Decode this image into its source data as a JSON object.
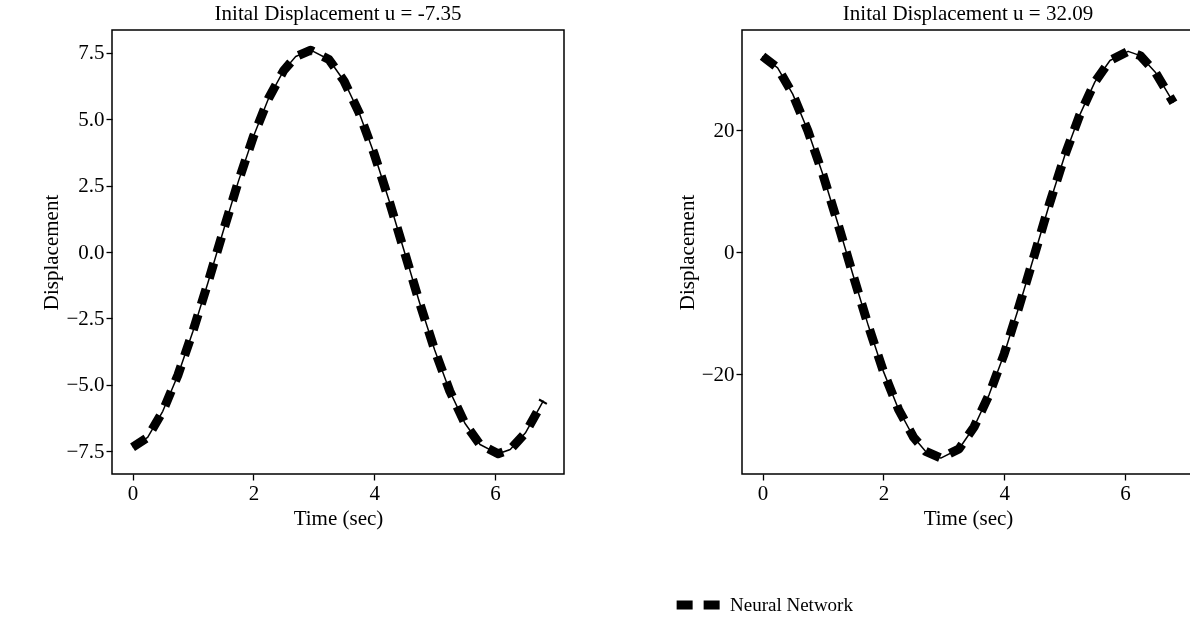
{
  "chart_data": [
    {
      "type": "line",
      "title": "Inital Displacement u = -7.35",
      "xlabel": "Time (sec)",
      "ylabel": "Displacement",
      "legend": "bottom",
      "x": [
        0,
        0.25,
        0.5,
        0.75,
        1,
        1.25,
        1.5,
        1.75,
        2,
        2.25,
        2.5,
        2.7,
        2.95,
        3.25,
        3.5,
        3.75,
        4,
        4.25,
        4.5,
        4.75,
        5,
        5.25,
        5.5,
        5.75,
        6.05,
        6.25,
        6.5,
        6.8
      ],
      "series": [
        {
          "color": "#000000",
          "line_style": "solid",
          "values": [
            -7.35,
            -6.98,
            -6.0,
            -4.64,
            -2.98,
            -1.14,
            0.78,
            2.65,
            4.35,
            5.78,
            6.83,
            7.36,
            7.6,
            7.25,
            6.44,
            5.24,
            3.69,
            1.9,
            0.0,
            -1.91,
            -3.69,
            -5.24,
            -6.45,
            -7.25,
            -7.6,
            -7.44,
            -6.82,
            -5.6
          ]
        },
        {
          "name": "Neural Network",
          "color": "#000000",
          "line_style": "dashed",
          "values": [
            -7.35,
            -6.98,
            -6.0,
            -4.64,
            -2.98,
            -1.14,
            0.78,
            2.65,
            4.35,
            5.78,
            6.83,
            7.36,
            7.6,
            7.25,
            6.44,
            5.24,
            3.69,
            1.9,
            0.0,
            -1.91,
            -3.69,
            -5.24,
            -6.45,
            -7.25,
            -7.6,
            -7.44,
            -6.82,
            -5.6
          ]
        }
      ],
      "xlim": [
        -0.34,
        7.14
      ],
      "xticks": [
        0,
        2,
        4,
        6
      ],
      "ylim": [
        -8.36,
        8.36
      ],
      "yticks": [
        {
          "value": -7.5,
          "label": "−7.5"
        },
        {
          "value": -5,
          "label": "−5.0"
        },
        {
          "value": -2.5,
          "label": "−2.5"
        },
        {
          "value": 0,
          "label": "0.0"
        },
        {
          "value": 2.5,
          "label": "2.5"
        },
        {
          "value": 5,
          "label": "5.0"
        },
        {
          "value": 7.5,
          "label": "7.5"
        }
      ]
    },
    {
      "type": "line",
      "title": "Inital Displacement u = 32.09",
      "xlabel": "Time (sec)",
      "ylabel": "Displacement",
      "x": [
        0,
        0.25,
        0.5,
        0.75,
        1,
        1.25,
        1.5,
        1.75,
        2,
        2.25,
        2.5,
        2.7,
        2.95,
        3.25,
        3.5,
        3.75,
        4,
        4.25,
        4.5,
        4.75,
        5,
        5.25,
        5.5,
        5.75,
        6.05,
        6.25,
        6.5,
        6.8
      ],
      "series": [
        {
          "color": "#000000",
          "line_style": "solid",
          "values": [
            32.1,
            30.2,
            25.9,
            19.9,
            12.7,
            4.6,
            -3.8,
            -12.0,
            -19.5,
            -25.7,
            -30.3,
            -32.6,
            -33.7,
            -32.2,
            -28.6,
            -23.3,
            -16.6,
            -8.7,
            -0.4,
            8.0,
            15.8,
            22.5,
            27.9,
            31.4,
            32.9,
            32.2,
            29.5,
            24.5
          ]
        },
        {
          "name": "Neural Network",
          "color": "#000000",
          "line_style": "dashed",
          "values": [
            32.1,
            30.2,
            25.9,
            19.9,
            12.7,
            4.6,
            -3.8,
            -12.0,
            -19.5,
            -25.7,
            -30.3,
            -32.6,
            -33.7,
            -32.2,
            -28.6,
            -23.3,
            -16.6,
            -8.7,
            -0.4,
            8.0,
            15.8,
            22.5,
            27.9,
            31.4,
            32.9,
            32.2,
            29.5,
            24.5
          ]
        }
      ],
      "xlim": [
        -0.34,
        7.14
      ],
      "xticks": [
        0,
        2,
        4,
        6
      ],
      "ylim": [
        -36.3,
        36.4
      ],
      "yticks": [
        {
          "value": -20,
          "label": "−20"
        },
        0,
        20
      ]
    }
  ]
}
